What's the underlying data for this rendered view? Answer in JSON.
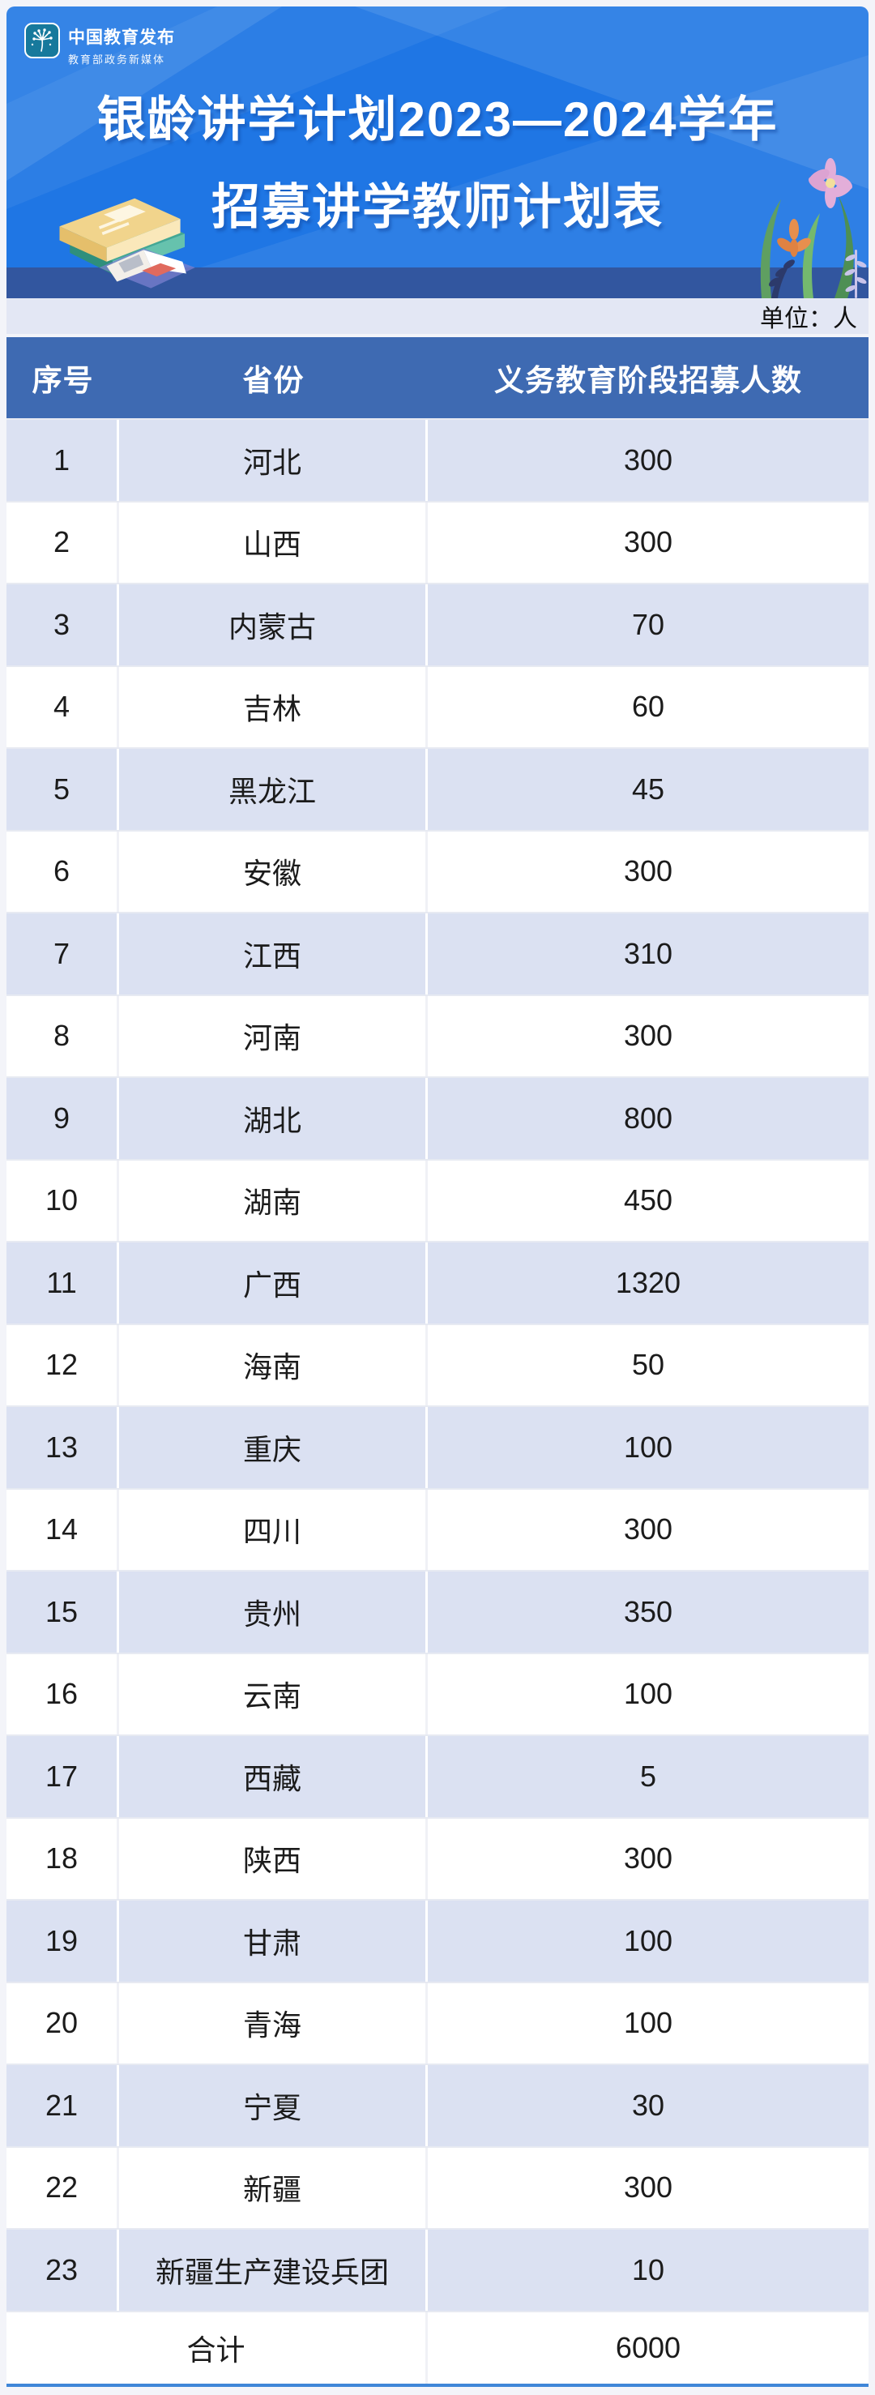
{
  "logo": {
    "title": "中国教育发布",
    "subtitle": "教育部政务新媒体",
    "icon": "dandelion-icon"
  },
  "banner": {
    "title_line1": "银龄讲学计划2023—2024学年",
    "title_line2": "招募讲学教师计划表",
    "decorations": [
      "books-illustration",
      "flowers-grass-illustration"
    ]
  },
  "colors": {
    "banner_blue": "#1f76e4",
    "banner_dark_band": "#32569f",
    "table_header_blue": "#3e6ab2",
    "row_alt_lavender": "#dbe1f2",
    "unit_strip": "#e3e7f4",
    "bottom_line_blue": "#3f86d8",
    "logo_badge_teal": "#17799c"
  },
  "chart_data": {
    "type": "table",
    "title": "银龄讲学计划2023—2024学年招募讲学教师计划表",
    "unit": "单位：人",
    "columns": [
      "序号",
      "省份",
      "义务教育阶段招募人数"
    ],
    "rows": [
      {
        "no": 1,
        "province": "河北",
        "count": 300
      },
      {
        "no": 2,
        "province": "山西",
        "count": 300
      },
      {
        "no": 3,
        "province": "内蒙古",
        "count": 70
      },
      {
        "no": 4,
        "province": "吉林",
        "count": 60
      },
      {
        "no": 5,
        "province": "黑龙江",
        "count": 45
      },
      {
        "no": 6,
        "province": "安徽",
        "count": 300
      },
      {
        "no": 7,
        "province": "江西",
        "count": 310
      },
      {
        "no": 8,
        "province": "河南",
        "count": 300
      },
      {
        "no": 9,
        "province": "湖北",
        "count": 800
      },
      {
        "no": 10,
        "province": "湖南",
        "count": 450
      },
      {
        "no": 11,
        "province": "广西",
        "count": 1320
      },
      {
        "no": 12,
        "province": "海南",
        "count": 50
      },
      {
        "no": 13,
        "province": "重庆",
        "count": 100
      },
      {
        "no": 14,
        "province": "四川",
        "count": 300
      },
      {
        "no": 15,
        "province": "贵州",
        "count": 350
      },
      {
        "no": 16,
        "province": "云南",
        "count": 100
      },
      {
        "no": 17,
        "province": "西藏",
        "count": 5
      },
      {
        "no": 18,
        "province": "陕西",
        "count": 300
      },
      {
        "no": 19,
        "province": "甘肃",
        "count": 100
      },
      {
        "no": 20,
        "province": "青海",
        "count": 100
      },
      {
        "no": 21,
        "province": "宁夏",
        "count": 30
      },
      {
        "no": 22,
        "province": "新疆",
        "count": 300
      },
      {
        "no": 23,
        "province": "新疆生产建设兵团",
        "count": 10
      }
    ],
    "total": {
      "label": "合计",
      "value": 6000
    }
  }
}
